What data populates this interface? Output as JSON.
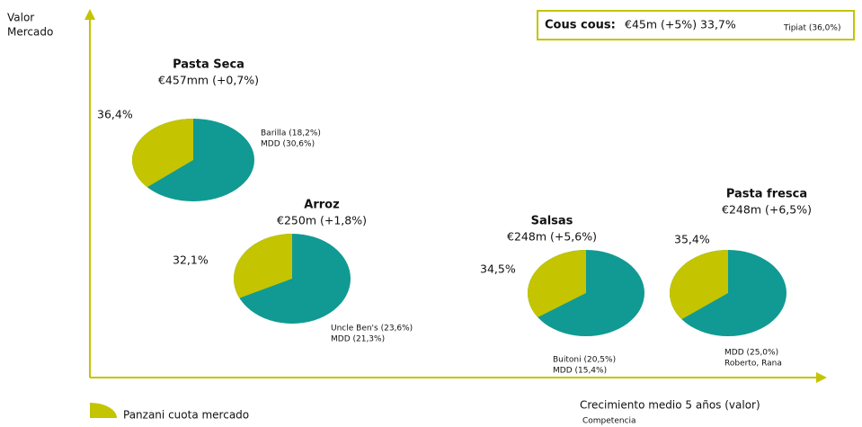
{
  "chart_data": {
    "type": "pie",
    "y_label": [
      "Valor",
      "Mercado"
    ],
    "x_label": "Crecimiento medio 5 años (valor)",
    "x_note": "Competencia",
    "legend": "Panzani cuota mercado",
    "share_color": "#c4c400",
    "rest_color": "#109a93",
    "box": {
      "title": "Cous cous:",
      "detail": "€45m (+5%) 33,7%",
      "competitors": "Tipiat (36,0%)"
    },
    "markets": [
      {
        "name": "Pasta Seca",
        "size": "€457mm (+0,7%)",
        "share": 36.4,
        "share_label": "36,4%",
        "competitors": [
          "Barilla (18,2%)",
          "MDD (30,6%)"
        ]
      },
      {
        "name": "Arroz",
        "size": "€250m (+1,8%)",
        "share": 32.1,
        "share_label": "32,1%",
        "competitors": [
          "Uncle Ben's (23,6%)",
          "MDD (21,3%)"
        ]
      },
      {
        "name": "Salsas",
        "size": "€248m (+5,6%)",
        "share": 34.5,
        "share_label": "34,5%",
        "competitors": [
          "Buitoni (20,5%)",
          "MDD (15,4%)"
        ]
      },
      {
        "name": "Pasta fresca",
        "size": "€248m (+6,5%)",
        "share": 35.4,
        "share_label": "35,4%",
        "competitors": [
          "MDD (25,0%)",
          "Roberto, Rana"
        ]
      }
    ]
  }
}
